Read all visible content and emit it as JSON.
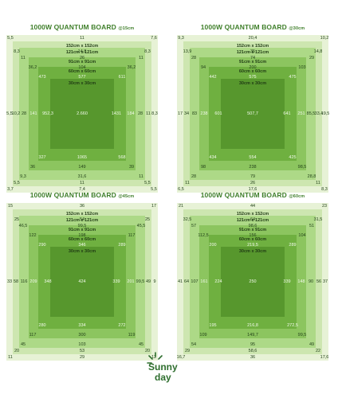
{
  "colors": {
    "title": "#3f7f2a",
    "ring0": "#e7f2d6",
    "ring1": "#cde6b0",
    "ring2": "#add987",
    "ring3": "#8cc55f",
    "ring4": "#6fb040",
    "ring5": "#57972d"
  },
  "ring_labels": [
    "152cm x 152cm",
    "121cm x 121cm",
    "91cm x 91cm",
    "60cm x 60cm",
    "30cm x 30cm"
  ],
  "panels": [
    {
      "title": "1000W QUANTUM BOARD",
      "distance": "@15cm",
      "top": [
        "5,5",
        "11",
        "7,6"
      ],
      "bottom": [
        "3,7",
        "7,4",
        "5,5"
      ],
      "left": [
        "5,5",
        "10,2",
        "28",
        "141"
      ],
      "right": [
        "184",
        "28",
        "11",
        "8,3"
      ],
      "center_left": "952,3",
      "center": "2.660",
      "center_right": "1431",
      "ring1": {
        "top": [
          "8,3",
          "14,8",
          "8,3"
        ],
        "bottom": [
          "5,5",
          "11",
          "5,5"
        ]
      },
      "ring2": {
        "top": [
          "11",
          "26",
          "11"
        ],
        "bottom": [
          "9,3",
          "31,6",
          "11"
        ]
      },
      "ring3": {
        "top": [
          "36,2",
          "104",
          "36,2"
        ],
        "bottom": [
          "36",
          "149",
          "39"
        ]
      },
      "ring4": {
        "top": [
          "473",
          "577",
          "611"
        ],
        "bottom": [
          "327",
          "1065",
          "568"
        ]
      }
    },
    {
      "title": "1000W QUANTUM BOARD",
      "distance": "@30cm",
      "top": [
        "9,3",
        "20,4",
        "10,2"
      ],
      "bottom": [
        "6,5",
        "17,6",
        "8,3"
      ],
      "left": [
        "17",
        "34",
        "83",
        "238"
      ],
      "right": [
        "251",
        "85,5",
        "33,4",
        "19,5"
      ],
      "center_left": "601",
      "center": "507,7",
      "center_right": "641",
      "ring1": {
        "top": [
          "13,9",
          "35",
          "14,8"
        ],
        "bottom": [
          "11",
          "26",
          "11"
        ]
      },
      "ring2": {
        "top": [
          "28",
          "74",
          "29"
        ],
        "bottom": [
          "28",
          "79",
          "28,8"
        ]
      },
      "ring3": {
        "top": [
          "94",
          "200",
          "103"
        ],
        "bottom": [
          "98",
          "238",
          "98,5"
        ]
      },
      "ring4": {
        "top": [
          "442",
          "575",
          "475"
        ],
        "bottom": [
          "434",
          "554",
          "425"
        ]
      }
    },
    {
      "title": "1000W QUANTUM BOARD",
      "distance": "@45cm",
      "top": [
        "15",
        "36",
        "17"
      ],
      "bottom": [
        "11",
        "29",
        "12"
      ],
      "left": [
        "33",
        "58",
        "116",
        "209"
      ],
      "right": [
        "201",
        "99,5",
        "49",
        "9"
      ],
      "center_left": "348",
      "center": "424",
      "center_right": "339",
      "ring1": {
        "top": [
          "25",
          "54",
          "25"
        ],
        "bottom": [
          "20",
          "53",
          "20"
        ]
      },
      "ring2": {
        "top": [
          "46,5",
          "99,5",
          "45,5"
        ],
        "bottom": [
          "45",
          "103",
          "45"
        ]
      },
      "ring3": {
        "top": [
          "122",
          "198",
          "117"
        ],
        "bottom": [
          "117",
          "300",
          "119"
        ]
      },
      "ring4": {
        "top": [
          "290",
          "346",
          "289"
        ],
        "bottom": [
          "280",
          "334",
          "272"
        ]
      }
    },
    {
      "title": "1000W QUANTUM BOARD",
      "distance": "@60cm",
      "top": [
        "21",
        "44",
        "23"
      ],
      "bottom": [
        "16,7",
        "36",
        "17,6"
      ],
      "left": [
        "41",
        "64",
        "107",
        "161"
      ],
      "right": [
        "148",
        "90",
        "56",
        "37"
      ],
      "center_left": "224",
      "center": "250",
      "center_right": "339",
      "ring1": {
        "top": [
          "32,5",
          "64",
          "31,5"
        ],
        "bottom": [
          "29",
          "58,6",
          "22"
        ]
      },
      "ring2": {
        "top": [
          "57",
          "98,6",
          "51"
        ],
        "bottom": [
          "54",
          "95",
          "49"
        ]
      },
      "ring3": {
        "top": [
          "112,5",
          "156",
          "104"
        ],
        "bottom": [
          "109",
          "149,7",
          "99,5"
        ]
      },
      "ring4": {
        "top": [
          "200",
          "219,5",
          "289"
        ],
        "bottom": [
          "195",
          "216,8",
          "272,5"
        ]
      }
    }
  ],
  "logo": {
    "line1": "Sunny",
    "line2": "day"
  }
}
